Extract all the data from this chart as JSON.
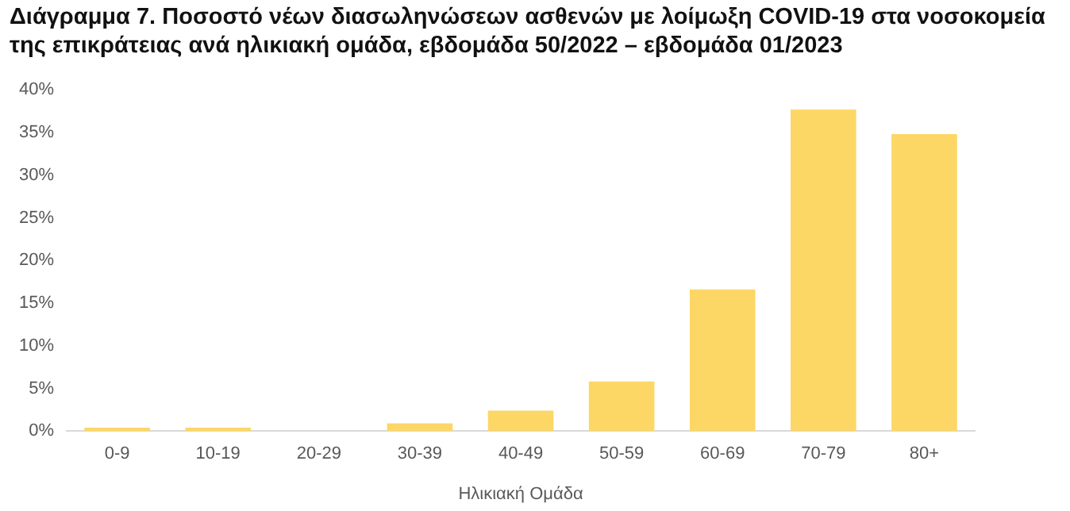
{
  "chart_data": {
    "type": "bar",
    "title": "Διάγραμμα 7. Ποσοστό νέων διασωληνώσεων ασθενών με λοίμωξη COVID-19 στα νοσοκομεία της επικράτειας ανά ηλικιακή ομάδα, εβδομάδα 50/2022 – εβδομάδα 01/2023",
    "xlabel": "Ηλικιακή Ομάδα",
    "categories": [
      "0-9",
      "10-19",
      "20-29",
      "30-39",
      "40-49",
      "50-59",
      "60-69",
      "70-79",
      "80+"
    ],
    "values": [
      0.4,
      0.4,
      0,
      0.9,
      2.4,
      5.8,
      16.6,
      37.7,
      34.8
    ],
    "color": "#fcd766",
    "ylim": [
      0,
      40
    ],
    "yticks": [
      {
        "value": 0,
        "label": "0%"
      },
      {
        "value": 5,
        "label": "5%"
      },
      {
        "value": 10,
        "label": "10%"
      },
      {
        "value": 15,
        "label": "15%"
      },
      {
        "value": 20,
        "label": "20%"
      },
      {
        "value": 25,
        "label": "25%"
      },
      {
        "value": 30,
        "label": "30%"
      },
      {
        "value": 35,
        "label": "35%"
      },
      {
        "value": 40,
        "label": "40%"
      }
    ],
    "grid": false
  }
}
